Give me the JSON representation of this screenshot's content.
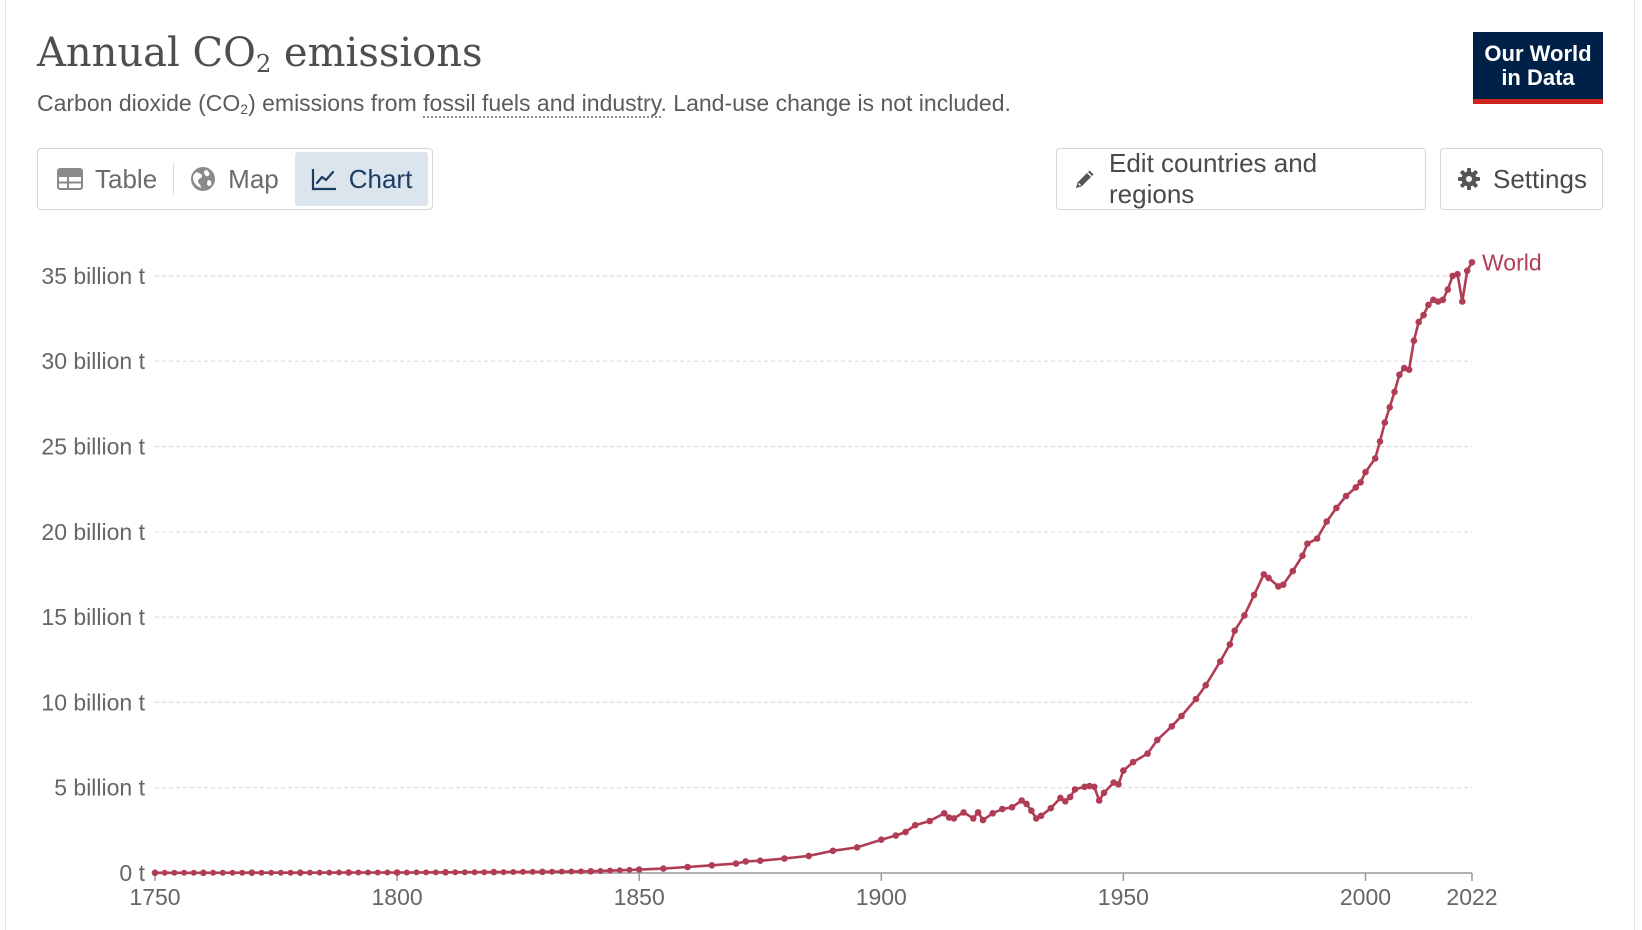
{
  "header": {
    "title_main": "Annual CO",
    "title_sub": "2",
    "title_rest": " emissions",
    "subtitle_pre": "Carbon dioxide (CO",
    "subtitle_sub": "2",
    "subtitle_mid": ") emissions from ",
    "subtitle_link": "fossil fuels and industry",
    "subtitle_post": ". Land-use change is not included.",
    "logo_line1": "Our World",
    "logo_line2": "in Data"
  },
  "tabs": [
    {
      "label": "Table",
      "icon": "table-icon",
      "active": false
    },
    {
      "label": "Map",
      "icon": "globe-icon",
      "active": false
    },
    {
      "label": "Chart",
      "icon": "line-chart-icon",
      "active": true
    }
  ],
  "toolbar": {
    "edit_label": "Edit countries and regions",
    "settings_label": "Settings"
  },
  "colors": {
    "series": "#b13c55",
    "grid": "#dddddd",
    "active_tab_bg": "#dce4ee",
    "logo_bg": "#002147",
    "logo_accent": "#ce261e"
  },
  "chart_data": {
    "type": "line",
    "title": "Annual CO₂ emissions",
    "ylabel": "",
    "xlabel": "",
    "x_ticks": [
      1750,
      1800,
      1850,
      1900,
      1950,
      2000,
      2022
    ],
    "y_ticks": [
      {
        "value": 0,
        "label": "0 t"
      },
      {
        "value": 5,
        "label": "5 billion t"
      },
      {
        "value": 10,
        "label": "10 billion t"
      },
      {
        "value": 15,
        "label": "15 billion t"
      },
      {
        "value": 20,
        "label": "20 billion t"
      },
      {
        "value": 25,
        "label": "25 billion t"
      },
      {
        "value": 30,
        "label": "30 billion t"
      },
      {
        "value": 35,
        "label": "35 billion t"
      }
    ],
    "xlim": [
      1750,
      2022
    ],
    "ylim": [
      0,
      37.5
    ],
    "grid": true,
    "legend": "end-of-line label",
    "series": [
      {
        "name": "World",
        "points": [
          [
            1750,
            0.01
          ],
          [
            1760,
            0.01
          ],
          [
            1770,
            0.02
          ],
          [
            1780,
            0.02
          ],
          [
            1790,
            0.03
          ],
          [
            1800,
            0.03
          ],
          [
            1810,
            0.04
          ],
          [
            1820,
            0.05
          ],
          [
            1830,
            0.07
          ],
          [
            1840,
            0.1
          ],
          [
            1850,
            0.2
          ],
          [
            1855,
            0.26
          ],
          [
            1860,
            0.35
          ],
          [
            1865,
            0.45
          ],
          [
            1870,
            0.55
          ],
          [
            1872,
            0.68
          ],
          [
            1875,
            0.72
          ],
          [
            1880,
            0.85
          ],
          [
            1885,
            1.0
          ],
          [
            1890,
            1.3
          ],
          [
            1895,
            1.5
          ],
          [
            1900,
            1.95
          ],
          [
            1903,
            2.2
          ],
          [
            1905,
            2.4
          ],
          [
            1907,
            2.8
          ],
          [
            1910,
            3.05
          ],
          [
            1913,
            3.5
          ],
          [
            1914,
            3.25
          ],
          [
            1915,
            3.2
          ],
          [
            1917,
            3.55
          ],
          [
            1919,
            3.2
          ],
          [
            1920,
            3.55
          ],
          [
            1921,
            3.1
          ],
          [
            1923,
            3.5
          ],
          [
            1925,
            3.75
          ],
          [
            1927,
            3.85
          ],
          [
            1929,
            4.25
          ],
          [
            1930,
            4.05
          ],
          [
            1931,
            3.65
          ],
          [
            1932,
            3.2
          ],
          [
            1933,
            3.35
          ],
          [
            1935,
            3.8
          ],
          [
            1937,
            4.4
          ],
          [
            1938,
            4.2
          ],
          [
            1939,
            4.45
          ],
          [
            1940,
            4.9
          ],
          [
            1942,
            5.05
          ],
          [
            1943,
            5.1
          ],
          [
            1944,
            5.05
          ],
          [
            1945,
            4.25
          ],
          [
            1946,
            4.7
          ],
          [
            1948,
            5.3
          ],
          [
            1949,
            5.2
          ],
          [
            1950,
            6.0
          ],
          [
            1952,
            6.5
          ],
          [
            1955,
            7.0
          ],
          [
            1957,
            7.8
          ],
          [
            1960,
            8.6
          ],
          [
            1962,
            9.2
          ],
          [
            1965,
            10.2
          ],
          [
            1967,
            11.0
          ],
          [
            1970,
            12.4
          ],
          [
            1972,
            13.4
          ],
          [
            1973,
            14.2
          ],
          [
            1975,
            15.1
          ],
          [
            1977,
            16.3
          ],
          [
            1979,
            17.5
          ],
          [
            1980,
            17.3
          ],
          [
            1982,
            16.8
          ],
          [
            1983,
            16.9
          ],
          [
            1985,
            17.7
          ],
          [
            1987,
            18.6
          ],
          [
            1988,
            19.3
          ],
          [
            1990,
            19.6
          ],
          [
            1992,
            20.6
          ],
          [
            1994,
            21.4
          ],
          [
            1996,
            22.1
          ],
          [
            1998,
            22.6
          ],
          [
            1999,
            22.9
          ],
          [
            2000,
            23.5
          ],
          [
            2002,
            24.3
          ],
          [
            2003,
            25.3
          ],
          [
            2004,
            26.4
          ],
          [
            2005,
            27.3
          ],
          [
            2006,
            28.2
          ],
          [
            2007,
            29.2
          ],
          [
            2008,
            29.6
          ],
          [
            2009,
            29.5
          ],
          [
            2010,
            31.2
          ],
          [
            2011,
            32.3
          ],
          [
            2012,
            32.7
          ],
          [
            2013,
            33.3
          ],
          [
            2014,
            33.6
          ],
          [
            2015,
            33.5
          ],
          [
            2016,
            33.6
          ],
          [
            2017,
            34.2
          ],
          [
            2018,
            35.0
          ],
          [
            2019,
            35.1
          ],
          [
            2020,
            33.5
          ],
          [
            2021,
            35.3
          ],
          [
            2022,
            35.8
          ]
        ]
      }
    ]
  }
}
